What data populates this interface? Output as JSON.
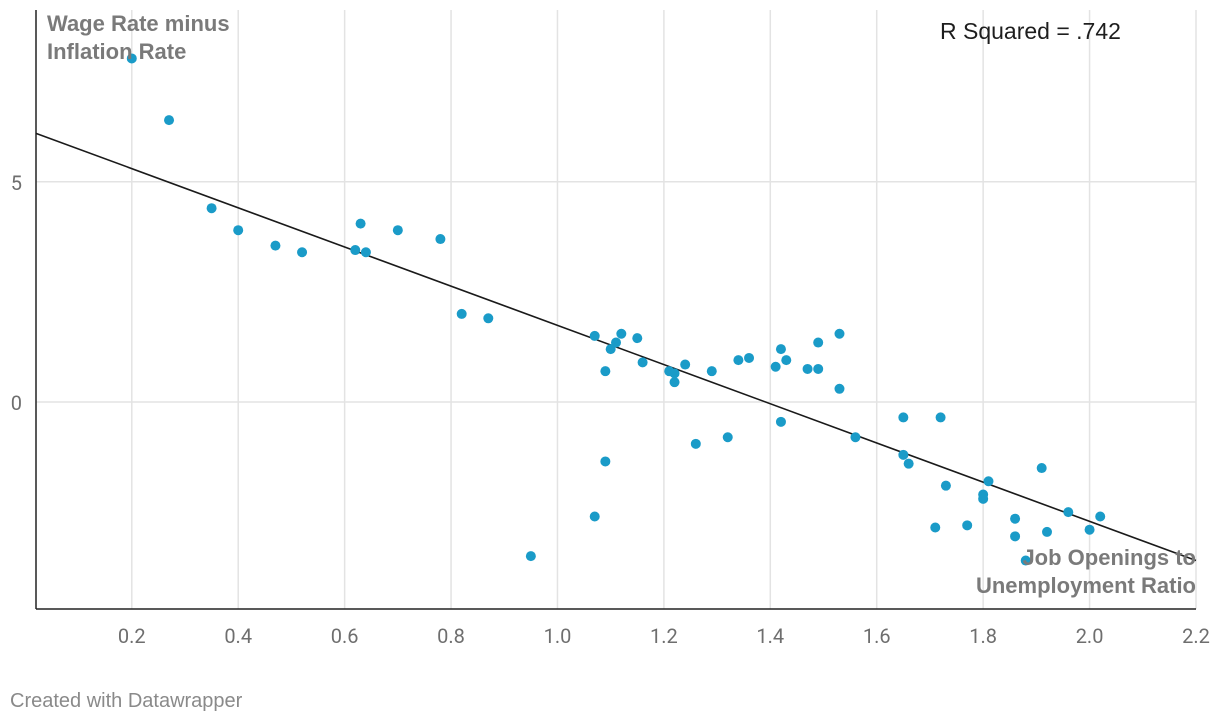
{
  "chart_data": {
    "type": "scatter",
    "title": "",
    "xlabel": "Job Openings to Unemployment Ratio",
    "ylabel": "Wage Rate minus Inflation Rate",
    "ylabel_lines": [
      "Wage Rate minus",
      "Inflation Rate"
    ],
    "xlabel_lines": [
      "Job Openings to",
      "Unemployment Ratio"
    ],
    "xlim": [
      0.02,
      2.2
    ],
    "ylim": [
      -4.7,
      8.9
    ],
    "x_ticks": [
      0.2,
      0.4,
      0.6,
      0.8,
      1.0,
      1.2,
      1.4,
      1.6,
      1.8,
      2.0,
      2.2
    ],
    "x_tick_labels": [
      "0.2",
      "0.4",
      "0.6",
      "0.8",
      "1.0",
      "1.2",
      "1.4",
      "1.6",
      "1.8",
      "2.0",
      "2.2"
    ],
    "y_ticks": [
      0,
      5
    ],
    "y_tick_labels": [
      "0",
      "5"
    ],
    "grid": true,
    "annotation": "R Squared = .742",
    "trendline": {
      "x": [
        0.02,
        2.2
      ],
      "y": [
        6.1,
        -3.6
      ]
    },
    "marker_color": "#1a9bc8",
    "line_color": "#1a1a1a",
    "points": [
      {
        "x": 0.2,
        "y": 7.8
      },
      {
        "x": 0.27,
        "y": 6.4
      },
      {
        "x": 0.35,
        "y": 4.4
      },
      {
        "x": 0.4,
        "y": 3.9
      },
      {
        "x": 0.47,
        "y": 3.55
      },
      {
        "x": 0.52,
        "y": 3.4
      },
      {
        "x": 0.62,
        "y": 3.45
      },
      {
        "x": 0.63,
        "y": 4.05
      },
      {
        "x": 0.64,
        "y": 3.4
      },
      {
        "x": 0.7,
        "y": 3.9
      },
      {
        "x": 0.78,
        "y": 3.7
      },
      {
        "x": 0.82,
        "y": 2.0
      },
      {
        "x": 0.87,
        "y": 1.9
      },
      {
        "x": 0.95,
        "y": -3.5
      },
      {
        "x": 1.07,
        "y": 1.5
      },
      {
        "x": 1.07,
        "y": -2.6
      },
      {
        "x": 1.09,
        "y": 0.7
      },
      {
        "x": 1.09,
        "y": -1.35
      },
      {
        "x": 1.1,
        "y": 1.2
      },
      {
        "x": 1.11,
        "y": 1.35
      },
      {
        "x": 1.12,
        "y": 1.55
      },
      {
        "x": 1.15,
        "y": 1.45
      },
      {
        "x": 1.16,
        "y": 0.9
      },
      {
        "x": 1.21,
        "y": 0.7
      },
      {
        "x": 1.22,
        "y": 0.65
      },
      {
        "x": 1.22,
        "y": 0.45
      },
      {
        "x": 1.24,
        "y": 0.85
      },
      {
        "x": 1.26,
        "y": -0.95
      },
      {
        "x": 1.29,
        "y": 0.7
      },
      {
        "x": 1.32,
        "y": -0.8
      },
      {
        "x": 1.34,
        "y": 0.95
      },
      {
        "x": 1.36,
        "y": 1.0
      },
      {
        "x": 1.41,
        "y": 0.8
      },
      {
        "x": 1.42,
        "y": 1.2
      },
      {
        "x": 1.42,
        "y": -0.45
      },
      {
        "x": 1.43,
        "y": 0.95
      },
      {
        "x": 1.47,
        "y": 0.75
      },
      {
        "x": 1.49,
        "y": 1.35
      },
      {
        "x": 1.49,
        "y": 0.75
      },
      {
        "x": 1.53,
        "y": 1.55
      },
      {
        "x": 1.53,
        "y": 0.3
      },
      {
        "x": 1.56,
        "y": -0.8
      },
      {
        "x": 1.65,
        "y": -0.35
      },
      {
        "x": 1.65,
        "y": -1.2
      },
      {
        "x": 1.66,
        "y": -1.4
      },
      {
        "x": 1.71,
        "y": -2.85
      },
      {
        "x": 1.72,
        "y": -0.35
      },
      {
        "x": 1.73,
        "y": -1.9
      },
      {
        "x": 1.77,
        "y": -2.8
      },
      {
        "x": 1.8,
        "y": -2.1
      },
      {
        "x": 1.8,
        "y": -2.2
      },
      {
        "x": 1.81,
        "y": -1.8
      },
      {
        "x": 1.86,
        "y": -2.65
      },
      {
        "x": 1.86,
        "y": -3.05
      },
      {
        "x": 1.88,
        "y": -3.6
      },
      {
        "x": 1.91,
        "y": -1.5
      },
      {
        "x": 1.92,
        "y": -2.95
      },
      {
        "x": 1.96,
        "y": -2.5
      },
      {
        "x": 2.0,
        "y": -2.9
      },
      {
        "x": 2.02,
        "y": -2.6
      }
    ]
  },
  "footer": {
    "credit": "Created with Datawrapper"
  }
}
